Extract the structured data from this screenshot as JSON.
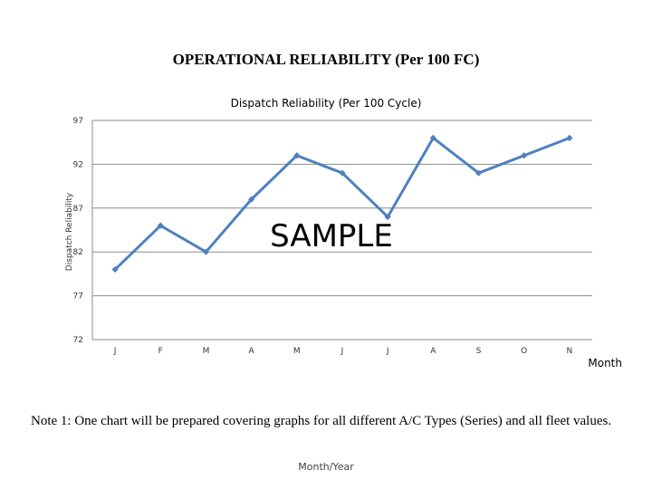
{
  "page": {
    "main_title": "OPERATIONAL RELIABILITY (Per 100 FC)",
    "note": "Note 1: One chart will be prepared covering graphs for all different A/C Types (Series) and all fleet values.",
    "footer": "Month/Year",
    "watermark": "SAMPLE"
  },
  "chart_data": {
    "type": "line",
    "title": "Dispatch Reliability (Per 100 Cycle)",
    "xlabel": "Month",
    "ylabel": "Dispatch Reliability",
    "categories": [
      "J",
      "F",
      "M",
      "A",
      "M",
      "J",
      "J",
      "A",
      "S",
      "O",
      "N"
    ],
    "yticks": [
      97,
      92,
      87,
      82,
      77,
      72
    ],
    "ylim": [
      72,
      97
    ],
    "grid": true,
    "series": [
      {
        "name": "Dispatch Reliability",
        "color": "#4f81bd",
        "values": [
          80,
          85,
          82,
          88,
          93,
          91,
          86,
          95,
          91,
          93,
          95
        ]
      }
    ]
  }
}
